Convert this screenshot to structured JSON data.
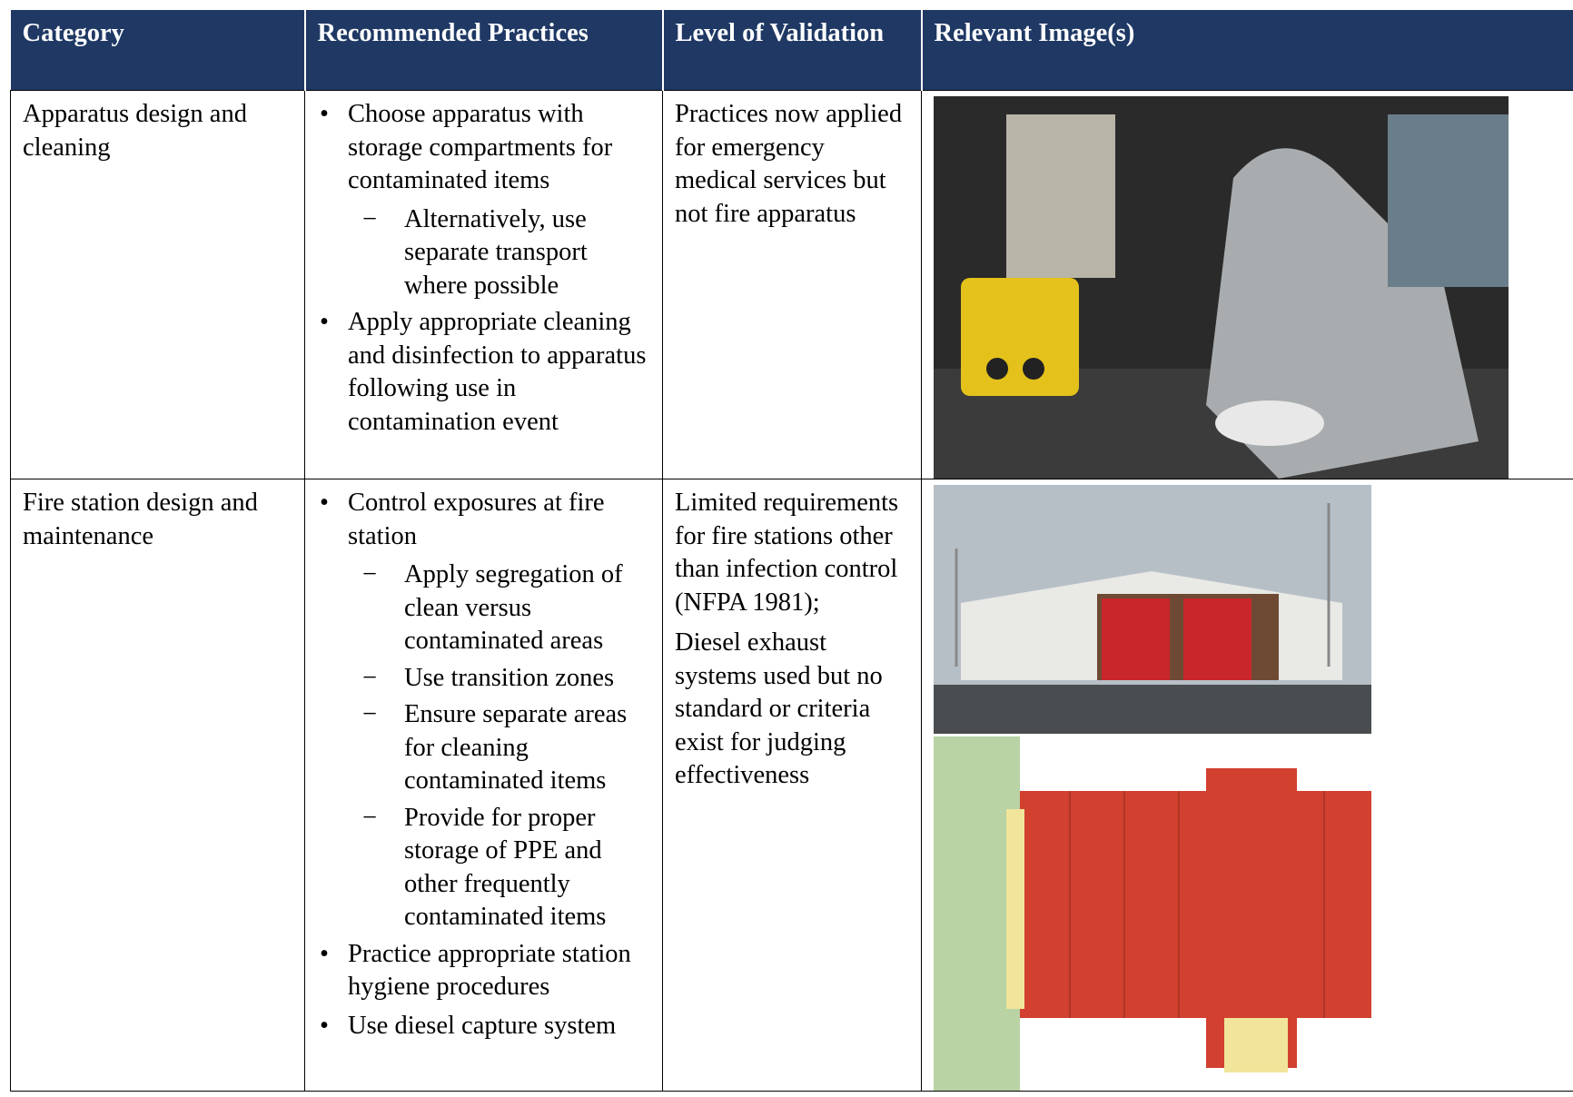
{
  "header": {
    "columns": [
      "Category",
      "Recommended Practices",
      "Level of Validation",
      "Relevant Image(s)"
    ]
  },
  "rows": [
    {
      "category": "Apparatus design and cleaning",
      "practices": [
        {
          "text": "Choose apparatus with storage compartments for contaminated items",
          "sub": [
            "Alternatively, use separate transport where possible"
          ]
        },
        {
          "text": "Apply appropriate cleaning and disinfection to apparatus following use in contamination event",
          "sub": []
        }
      ],
      "validation": [
        "Practices now applied for emergency medical services but not fire apparatus"
      ]
    },
    {
      "category": "Fire station design and maintenance",
      "practices": [
        {
          "text": "Control exposures at fire station",
          "sub": [
            "Apply segregation of clean versus contaminated areas",
            "Use transition zones",
            "Ensure separate areas for cleaning contaminated items",
            "Provide for proper storage of PPE and other frequently contaminated items"
          ]
        },
        {
          "text": "Practice appropriate station hygiene procedures",
          "sub": []
        },
        {
          "text": "Use diesel capture system",
          "sub": []
        }
      ],
      "validation": [
        "Limited requirements for fire stations other than infection control (NFPA 1981);",
        "Diesel exhaust systems used but no standard or criteria exist for judging effectiveness"
      ]
    }
  ]
}
